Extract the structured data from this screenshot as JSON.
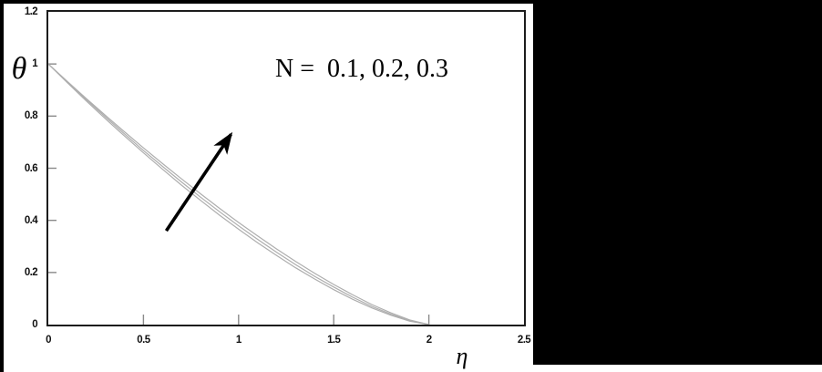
{
  "figure": {
    "background_color": "#ffffff",
    "mask_color": "#000000",
    "frame_color": "#1c1c1c",
    "tick_color": "#8a8a8a",
    "arrow_color": "#000000"
  },
  "chart_data": {
    "type": "line",
    "title": "",
    "xlabel": "η",
    "ylabel": "θ",
    "xlim": [
      0,
      2.5
    ],
    "ylim": [
      0,
      1.2
    ],
    "grid": false,
    "legend": "none",
    "line_color": "#aeaeae",
    "annotation": {
      "text": "N =  0.1, 0.2, 0.3"
    },
    "arrow": {
      "meaning": "direction of increasing N",
      "from": {
        "eta": 0.62,
        "theta": 0.36
      },
      "to": {
        "eta": 0.96,
        "theta": 0.73
      }
    },
    "x_ticks": {
      "values": [
        0,
        0.5,
        1,
        1.5,
        2,
        2.5
      ],
      "labels": [
        "0",
        "0.5",
        "1",
        "1.5",
        "2",
        "2.5"
      ]
    },
    "y_ticks": {
      "values": [
        0,
        0.2,
        0.4,
        0.6,
        0.8,
        1,
        1.2
      ],
      "labels": [
        "0",
        "0.2",
        "0.4",
        "0.6",
        "0.8",
        "1",
        "1.2"
      ]
    },
    "x": [
      0,
      0.1,
      0.2,
      0.3,
      0.4,
      0.5,
      0.6,
      0.7,
      0.8,
      0.9,
      1,
      1.1,
      1.2,
      1.3,
      1.4,
      1.5,
      1.6,
      1.7,
      1.8,
      1.9,
      2
    ],
    "series": [
      {
        "name": "N=0.1",
        "values": [
          1,
          0.928,
          0.858,
          0.79,
          0.724,
          0.659,
          0.596,
          0.535,
          0.477,
          0.42,
          0.366,
          0.314,
          0.265,
          0.218,
          0.175,
          0.134,
          0.097,
          0.064,
          0.036,
          0.013,
          0
        ]
      },
      {
        "name": "N=0.2",
        "values": [
          1,
          0.931,
          0.863,
          0.797,
          0.732,
          0.668,
          0.607,
          0.547,
          0.489,
          0.433,
          0.379,
          0.327,
          0.277,
          0.23,
          0.185,
          0.144,
          0.105,
          0.07,
          0.04,
          0.015,
          0
        ]
      },
      {
        "name": "N=0.3",
        "values": [
          1,
          0.933,
          0.867,
          0.803,
          0.74,
          0.678,
          0.618,
          0.559,
          0.502,
          0.446,
          0.392,
          0.34,
          0.29,
          0.242,
          0.197,
          0.154,
          0.114,
          0.077,
          0.045,
          0.018,
          0
        ]
      }
    ]
  }
}
